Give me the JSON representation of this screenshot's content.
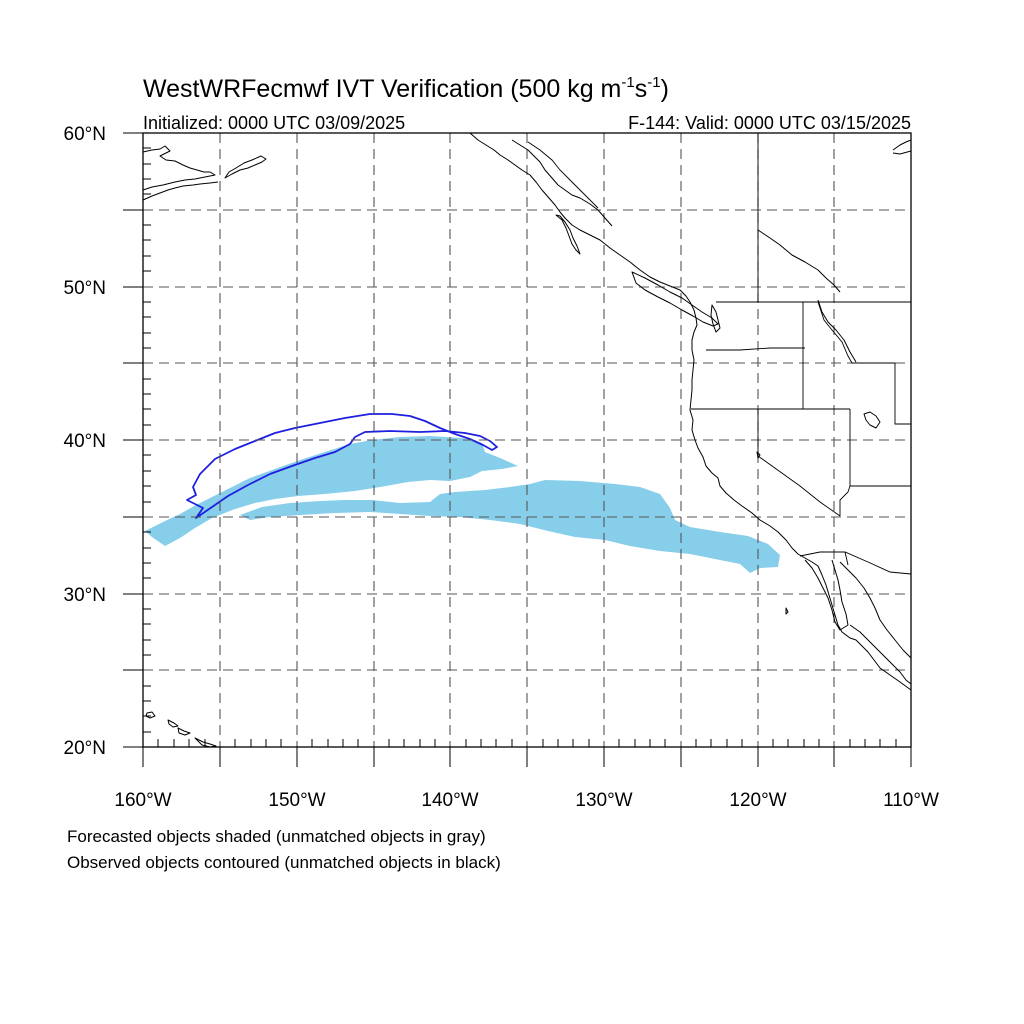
{
  "header": {
    "title_main": "WestWRFecmwf IVT Verification (500 kg m",
    "title_sup1": "-1",
    "title_mid": "s",
    "title_sup2": "-1",
    "title_end": ")",
    "initialized": "Initialized: 0000 UTC 03/09/2025",
    "valid": "F-144: Valid: 0000 UTC 03/15/2025"
  },
  "map": {
    "lon_range": [
      -160,
      -110
    ],
    "lat_range": [
      20,
      60
    ],
    "lon_labels": [
      "160°W",
      "150°W",
      "140°W",
      "130°W",
      "120°W",
      "110°W"
    ],
    "lat_labels": [
      "20°N",
      "30°N",
      "40°N",
      "50°N",
      "60°N"
    ],
    "forecast_color": "#87ceeb",
    "observed_color": "#1f1fe0"
  },
  "legend": {
    "line1": "Forecasted objects shaded (unmatched objects in gray)",
    "line2": "Observed objects contoured (unmatched objects in black)"
  }
}
